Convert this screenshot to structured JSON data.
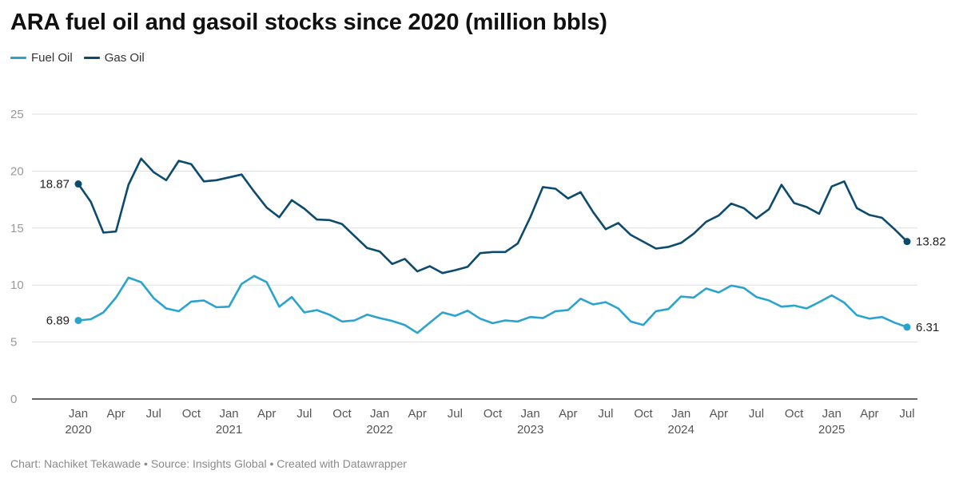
{
  "title": "ARA fuel oil and gasoil stocks since 2020 (million bbls)",
  "footer": "Chart: Nachiket Tekawade • Source: Insights Global • Created with Datawrapper",
  "colors": {
    "fuel_oil": "#2ba3cf",
    "gas_oil": "#0c4a6e",
    "grid": "#dddddd",
    "axis": "#333333"
  },
  "chart_data": {
    "type": "line",
    "title": "ARA fuel oil and gasoil stocks since 2020 (million bbls)",
    "xlabel": "",
    "ylabel": "",
    "ylim": [
      0,
      25
    ],
    "yticks": [
      0,
      5,
      10,
      15,
      20,
      25
    ],
    "grid": true,
    "legend_position": "top-left",
    "x_start": "2020-01",
    "x_end": "2025-07",
    "xticks": [
      {
        "month": "2020-01",
        "label": "Jan",
        "year": "2020"
      },
      {
        "month": "2020-04",
        "label": "Apr",
        "year": ""
      },
      {
        "month": "2020-07",
        "label": "Jul",
        "year": ""
      },
      {
        "month": "2020-10",
        "label": "Oct",
        "year": ""
      },
      {
        "month": "2021-01",
        "label": "Jan",
        "year": "2021"
      },
      {
        "month": "2021-04",
        "label": "Apr",
        "year": ""
      },
      {
        "month": "2021-07",
        "label": "Jul",
        "year": ""
      },
      {
        "month": "2021-10",
        "label": "Oct",
        "year": ""
      },
      {
        "month": "2022-01",
        "label": "Jan",
        "year": "2022"
      },
      {
        "month": "2022-04",
        "label": "Apr",
        "year": ""
      },
      {
        "month": "2022-07",
        "label": "Jul",
        "year": ""
      },
      {
        "month": "2022-10",
        "label": "Oct",
        "year": ""
      },
      {
        "month": "2023-01",
        "label": "Jan",
        "year": "2023"
      },
      {
        "month": "2023-04",
        "label": "Apr",
        "year": ""
      },
      {
        "month": "2023-07",
        "label": "Jul",
        "year": ""
      },
      {
        "month": "2023-10",
        "label": "Oct",
        "year": ""
      },
      {
        "month": "2024-01",
        "label": "Jan",
        "year": "2024"
      },
      {
        "month": "2024-04",
        "label": "Apr",
        "year": ""
      },
      {
        "month": "2024-07",
        "label": "Jul",
        "year": ""
      },
      {
        "month": "2024-10",
        "label": "Oct",
        "year": ""
      },
      {
        "month": "2025-01",
        "label": "Jan",
        "year": "2025"
      },
      {
        "month": "2025-04",
        "label": "Apr",
        "year": ""
      },
      {
        "month": "2025-07",
        "label": "Jul",
        "year": ""
      }
    ],
    "series": [
      {
        "name": "Fuel Oil",
        "color": "#2ba3cf",
        "start_label": "6.89",
        "end_label": "6.31",
        "values": [
          6.89,
          7.0,
          7.6,
          8.9,
          10.65,
          10.25,
          8.85,
          7.95,
          7.7,
          8.55,
          8.65,
          8.05,
          8.1,
          10.1,
          10.8,
          10.25,
          8.1,
          8.95,
          7.6,
          7.8,
          7.4,
          6.8,
          6.9,
          7.4,
          7.1,
          6.85,
          6.5,
          5.8,
          6.7,
          7.6,
          7.3,
          7.75,
          7.05,
          6.65,
          6.9,
          6.8,
          7.2,
          7.1,
          7.7,
          7.8,
          8.8,
          8.3,
          8.5,
          7.95,
          6.8,
          6.5,
          7.7,
          7.9,
          9.0,
          8.9,
          9.7,
          9.35,
          9.95,
          9.75,
          8.95,
          8.65,
          8.1,
          8.2,
          7.95,
          8.5,
          9.1,
          8.45,
          7.35,
          7.05,
          7.2,
          6.7,
          6.31
        ]
      },
      {
        "name": "Gas Oil",
        "color": "#0c4a6e",
        "start_label": "18.87",
        "end_label": "13.82",
        "values": [
          18.87,
          17.3,
          14.6,
          14.7,
          18.8,
          21.1,
          19.9,
          19.2,
          20.9,
          20.6,
          19.1,
          19.2,
          19.45,
          19.7,
          18.2,
          16.8,
          15.95,
          17.45,
          16.7,
          15.75,
          15.7,
          15.35,
          14.3,
          13.25,
          12.95,
          11.85,
          12.3,
          11.2,
          11.65,
          11.05,
          11.3,
          11.6,
          12.8,
          12.9,
          12.9,
          13.65,
          15.95,
          18.6,
          18.45,
          17.6,
          18.15,
          16.4,
          14.9,
          15.45,
          14.4,
          13.8,
          13.2,
          13.35,
          13.7,
          14.5,
          15.55,
          16.1,
          17.15,
          16.75,
          15.85,
          16.65,
          18.8,
          17.2,
          16.85,
          16.25,
          18.65,
          19.1,
          16.75,
          16.15,
          15.9,
          14.9,
          13.82
        ]
      }
    ]
  }
}
